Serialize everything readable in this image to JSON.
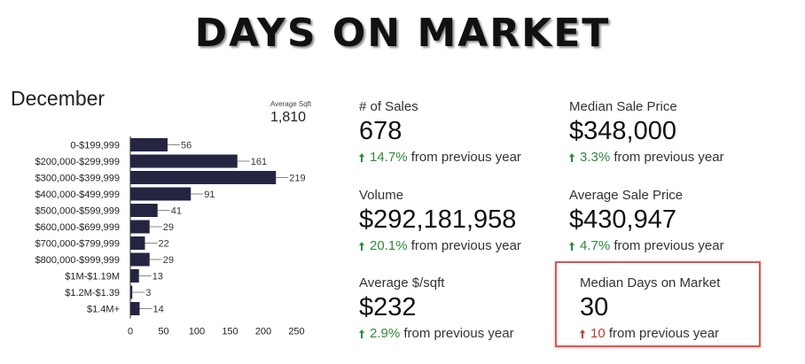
{
  "banner": "DAYS ON MARKET",
  "month": "December",
  "average_sqft": {
    "label": "Average Sqft",
    "value": "1,810"
  },
  "chart_data": {
    "type": "bar",
    "orientation": "horizontal",
    "categories": [
      "0-$199,999",
      "$200,000-$299,999",
      "$300,000-$399,999",
      "$400,000-$499,999",
      "$500,000-$599,999",
      "$600,000-$699,999",
      "$700,000-$799,999",
      "$800,000-$999,999",
      "$1M-$1.19M",
      "$1.2M-$1.39",
      "$1.4M+"
    ],
    "values": [
      56,
      161,
      219,
      91,
      41,
      29,
      22,
      29,
      13,
      3,
      14
    ],
    "xticks": [
      0,
      50,
      100,
      150,
      200,
      250
    ],
    "xlim": [
      0,
      250
    ],
    "bar_color": "#252542"
  },
  "stats": {
    "sales": {
      "label": "# of Sales",
      "value": "678",
      "change": "14.7%",
      "suffix": "from previous year"
    },
    "median_price": {
      "label": "Median Sale Price",
      "value": "$348,000",
      "change": "3.3%",
      "suffix": "from previous year"
    },
    "volume": {
      "label": "Volume",
      "value": "$292,181,958",
      "change": "20.1%",
      "suffix": "from previous year"
    },
    "avg_price": {
      "label": "Average Sale Price",
      "value": "$430,947",
      "change": "4.7%",
      "suffix": "from previous year"
    },
    "avg_sqft_price": {
      "label": "Average $/sqft",
      "value": "$232",
      "change": "2.9%",
      "suffix": "from previous year"
    },
    "median_dom": {
      "label": "Median Days on Market",
      "value": "30",
      "change": "10",
      "suffix": "from previous year"
    }
  },
  "colors": {
    "up_green": "#2e8b3a",
    "up_red": "#c0392b",
    "highlight": "#e05550"
  }
}
